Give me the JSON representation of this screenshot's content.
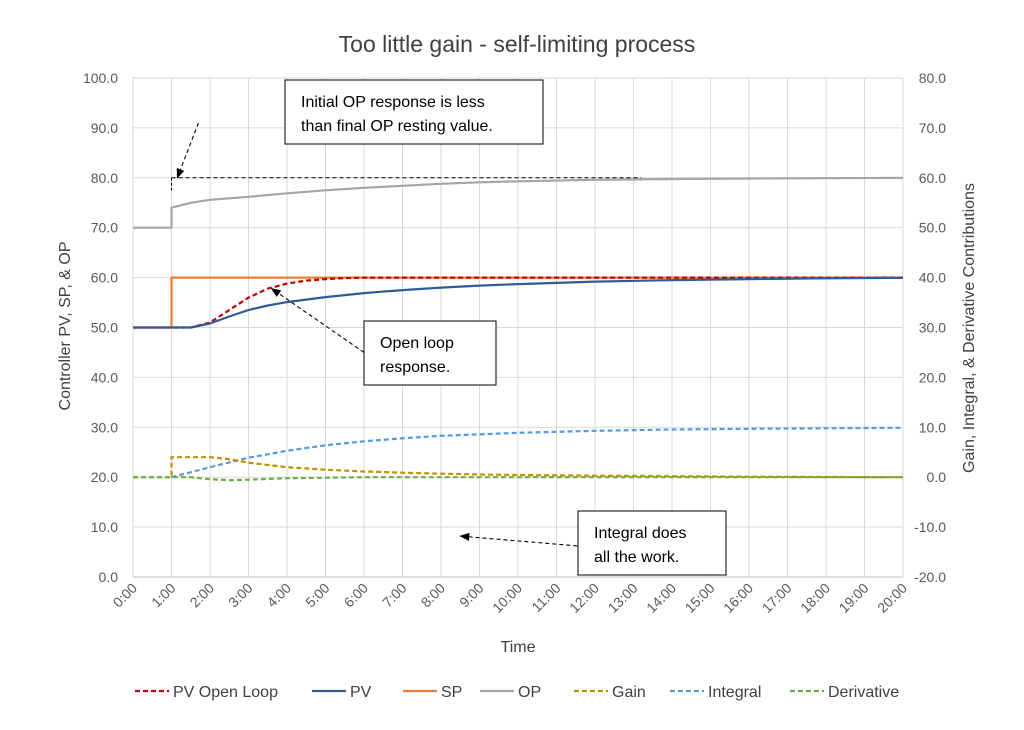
{
  "chart_data": {
    "type": "line",
    "title": "Too little gain - self-limiting process",
    "xlabel": "Time",
    "ylabel_left": "Controller PV, SP, & OP",
    "ylabel_right": "Gain, Integral, & Derivative Contributions",
    "x_unit": "minutes",
    "xlim": [
      0,
      20
    ],
    "ylim_left": [
      0,
      100
    ],
    "ylim_right": [
      -20,
      80
    ],
    "grid": true,
    "legend_position": "bottom",
    "x_tick_labels": [
      "0:00",
      "1:00",
      "2:00",
      "3:00",
      "4:00",
      "5:00",
      "6:00",
      "7:00",
      "8:00",
      "9:00",
      "10:00",
      "11:00",
      "12:00",
      "13:00",
      "14:00",
      "15:00",
      "16:00",
      "17:00",
      "18:00",
      "19:00",
      "20:00"
    ],
    "left_tick_labels": [
      "0.0",
      "10.0",
      "20.0",
      "30.0",
      "40.0",
      "50.0",
      "60.0",
      "70.0",
      "80.0",
      "90.0",
      "100.0"
    ],
    "right_tick_labels": [
      "-20.0",
      "-10.0",
      "0.0",
      "10.0",
      "20.0",
      "30.0",
      "40.0",
      "50.0",
      "60.0",
      "70.0",
      "80.0"
    ],
    "series": [
      {
        "name": "PV Open Loop",
        "axis": "left",
        "color": "#c00000",
        "dash": "dashed",
        "x": [
          0,
          1,
          1.5,
          2,
          2.5,
          3,
          3.5,
          4,
          4.5,
          5,
          5.5,
          6,
          20
        ],
        "y": [
          50,
          50,
          50,
          51,
          53.5,
          56,
          57.8,
          58.8,
          59.4,
          59.7,
          59.9,
          60,
          60
        ]
      },
      {
        "name": "PV",
        "axis": "left",
        "color": "#2e5c9a",
        "dash": "solid",
        "x": [
          0,
          1,
          1.5,
          2,
          2.5,
          3,
          3.5,
          4,
          5,
          6,
          7,
          8,
          9,
          10,
          12,
          14,
          16,
          18,
          20
        ],
        "y": [
          50,
          50,
          50,
          50.8,
          52.2,
          53.5,
          54.4,
          55.1,
          56.1,
          56.9,
          57.5,
          58,
          58.4,
          58.7,
          59.2,
          59.5,
          59.7,
          59.85,
          59.95
        ]
      },
      {
        "name": "SP",
        "axis": "left",
        "color": "#ed7d31",
        "dash": "solid",
        "x": [
          0,
          1,
          1,
          20
        ],
        "y": [
          50,
          50,
          60,
          60
        ]
      },
      {
        "name": "OP",
        "axis": "left",
        "color": "#a5a5a5",
        "dash": "solid",
        "x": [
          0,
          1,
          1,
          1.5,
          2,
          3,
          4,
          5,
          6,
          7,
          8,
          9,
          10,
          12,
          14,
          16,
          18,
          20
        ],
        "y": [
          70,
          70,
          74,
          75,
          75.6,
          76.2,
          76.9,
          77.5,
          78,
          78.4,
          78.8,
          79.1,
          79.3,
          79.6,
          79.75,
          79.85,
          79.92,
          79.97
        ]
      },
      {
        "name": "Gain",
        "axis": "right",
        "color": "#bf9000",
        "dash": "dashed",
        "x": [
          0,
          1,
          1,
          2,
          2.5,
          3,
          4,
          5,
          6,
          7,
          8,
          9,
          10,
          12,
          14,
          16,
          18,
          20
        ],
        "y": [
          0,
          0,
          4,
          4,
          3.6,
          2.9,
          2.0,
          1.5,
          1.15,
          0.9,
          0.7,
          0.55,
          0.45,
          0.3,
          0.2,
          0.1,
          0.05,
          0
        ]
      },
      {
        "name": "Integral",
        "axis": "right",
        "color": "#5b9bd5",
        "dash": "dashed",
        "x": [
          1,
          2,
          3,
          4,
          5,
          6,
          7,
          8,
          9,
          10,
          12,
          14,
          16,
          18,
          20
        ],
        "y": [
          0,
          2,
          3.9,
          5.3,
          6.4,
          7.2,
          7.8,
          8.3,
          8.6,
          8.9,
          9.3,
          9.55,
          9.7,
          9.8,
          9.9
        ]
      },
      {
        "name": "Derivative",
        "axis": "right",
        "color": "#70ad47",
        "dash": "dashed",
        "x": [
          0,
          1,
          1.5,
          2,
          2.5,
          3,
          4,
          5,
          6,
          20
        ],
        "y": [
          0,
          0,
          0,
          -0.4,
          -0.6,
          -0.5,
          -0.2,
          -0.1,
          0,
          0
        ]
      }
    ],
    "annotations": [
      {
        "id": "op",
        "text_lines": [
          "Initial OP response is less",
          "than final OP resting value."
        ],
        "arrow_from": [
          1.7,
          91
        ],
        "arrow_to": [
          1.15,
          80
        ],
        "guide_from": [
          1,
          80
        ],
        "guide_to": [
          13.2,
          80
        ]
      },
      {
        "id": "openloop",
        "text_lines": [
          "Open loop",
          "response."
        ],
        "arrow_from": [
          6.0,
          45
        ],
        "arrow_to": [
          3.6,
          57.8
        ]
      },
      {
        "id": "integral",
        "text_lines": [
          "Integral does",
          "all the work."
        ],
        "arrow_from": [
          11.9,
          6
        ],
        "arrow_to": [
          8.5,
          8.2
        ]
      }
    ]
  }
}
